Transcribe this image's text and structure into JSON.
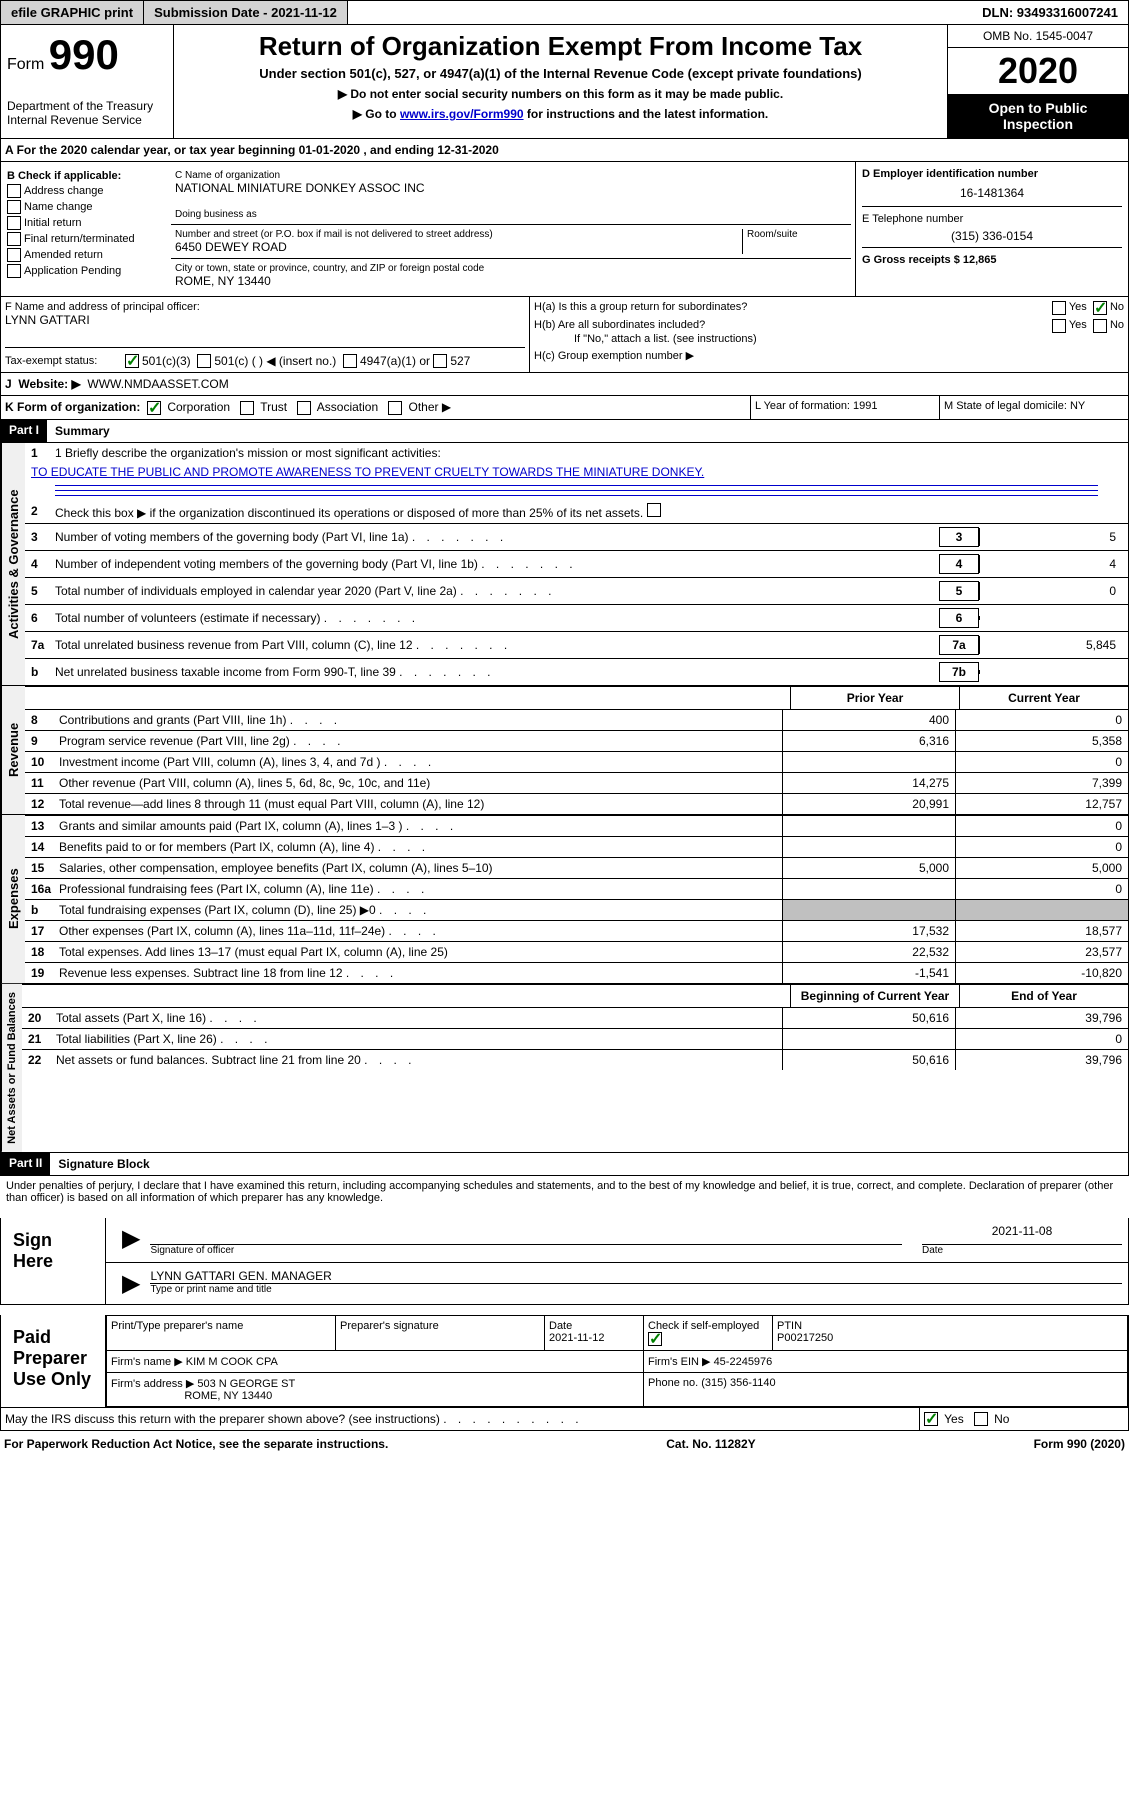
{
  "topbar": {
    "efile": "efile GRAPHIC print",
    "submission_label": "Submission Date - 2021-11-12",
    "dln": "DLN: 93493316007241"
  },
  "header": {
    "form_prefix": "Form",
    "form_num": "990",
    "dept": "Department of the Treasury\nInternal Revenue Service",
    "title": "Return of Organization Exempt From Income Tax",
    "subtitle": "Under section 501(c), 527, or 4947(a)(1) of the Internal Revenue Code (except private foundations)",
    "instr1": "▶ Do not enter social security numbers on this form as it may be made public.",
    "instr2_pre": "▶ Go to ",
    "instr2_link": "www.irs.gov/Form990",
    "instr2_post": " for instructions and the latest information.",
    "omb": "OMB No. 1545-0047",
    "year": "2020",
    "inspection": "Open to Public Inspection"
  },
  "period": "For the 2020 calendar year, or tax year beginning 01-01-2020   , and ending 12-31-2020",
  "section_b": {
    "label": "B Check if applicable:",
    "items": [
      "Address change",
      "Name change",
      "Initial return",
      "Final return/terminated",
      "Amended return",
      "Application Pending"
    ]
  },
  "org": {
    "c_label": "C Name of organization",
    "name": "NATIONAL MINIATURE DONKEY ASSOC INC",
    "dba_label": "Doing business as",
    "addr_label": "Number and street (or P.O. box if mail is not delivered to street address)",
    "room_label": "Room/suite",
    "street": "6450 DEWEY ROAD",
    "city_label": "City or town, state or province, country, and ZIP or foreign postal code",
    "city": "ROME, NY  13440"
  },
  "d_box": {
    "ein_label": "D Employer identification number",
    "ein": "16-1481364",
    "phone_label": "E Telephone number",
    "phone": "(315) 336-0154",
    "gross_label": "G Gross receipts $ 12,865"
  },
  "f_box": {
    "label": "F  Name and address of principal officer:",
    "name": "LYNN GATTARI"
  },
  "h_box": {
    "ha": "H(a)  Is this a group return for subordinates?",
    "hb": "H(b)  Are all subordinates included?",
    "hb_note": "If \"No,\" attach a list. (see instructions)",
    "hc": "H(c)  Group exemption number ▶",
    "yes": "Yes",
    "no": "No"
  },
  "tax_status": {
    "label": "Tax-exempt status:",
    "opt1": "501(c)(3)",
    "opt2": "501(c) (  ) ◀ (insert no.)",
    "opt3": "4947(a)(1) or",
    "opt4": "527"
  },
  "website": {
    "label": "Website: ▶",
    "value": "WWW.NMDAASSET.COM"
  },
  "k_line": {
    "label": "K Form of organization:",
    "corp": "Corporation",
    "trust": "Trust",
    "assoc": "Association",
    "other": "Other ▶"
  },
  "l_line": {
    "label": "L Year of formation: 1991"
  },
  "m_line": {
    "label": "M State of legal domicile: NY"
  },
  "part1": {
    "header": "Part I",
    "title": "Summary",
    "gov_label": "Activities & Governance",
    "rev_label": "Revenue",
    "exp_label": "Expenses",
    "net_label": "Net Assets or Fund Balances",
    "q1_label": "1  Briefly describe the organization's mission or most significant activities:",
    "mission": "TO EDUCATE THE PUBLIC AND PROMOTE AWARENESS TO PREVENT CRUELTY TOWARDS THE MINIATURE DONKEY.",
    "q2": "Check this box ▶         if the organization discontinued its operations or disposed of more than 25% of its net assets.",
    "lines": [
      {
        "n": "3",
        "t": "Number of voting members of the governing body (Part VI, line 1a)",
        "box": "3",
        "v": "5"
      },
      {
        "n": "4",
        "t": "Number of independent voting members of the governing body (Part VI, line 1b)",
        "box": "4",
        "v": "4"
      },
      {
        "n": "5",
        "t": "Total number of individuals employed in calendar year 2020 (Part V, line 2a)",
        "box": "5",
        "v": "0"
      },
      {
        "n": "6",
        "t": "Total number of volunteers (estimate if necessary)",
        "box": "6",
        "v": ""
      },
      {
        "n": "7a",
        "t": "Total unrelated business revenue from Part VIII, column (C), line 12",
        "box": "7a",
        "v": "5,845"
      },
      {
        "n": "b",
        "t": "Net unrelated business taxable income from Form 990-T, line 39",
        "box": "7b",
        "v": ""
      }
    ],
    "prior_header": "Prior Year",
    "current_header": "Current Year",
    "revenue": [
      {
        "n": "8",
        "t": "Contributions and grants (Part VIII, line 1h)",
        "p": "400",
        "c": "0"
      },
      {
        "n": "9",
        "t": "Program service revenue (Part VIII, line 2g)",
        "p": "6,316",
        "c": "5,358"
      },
      {
        "n": "10",
        "t": "Investment income (Part VIII, column (A), lines 3, 4, and 7d )",
        "p": "",
        "c": "0"
      },
      {
        "n": "11",
        "t": "Other revenue (Part VIII, column (A), lines 5, 6d, 8c, 9c, 10c, and 11e)",
        "p": "14,275",
        "c": "7,399"
      },
      {
        "n": "12",
        "t": "Total revenue—add lines 8 through 11 (must equal Part VIII, column (A), line 12)",
        "p": "20,991",
        "c": "12,757"
      }
    ],
    "expenses": [
      {
        "n": "13",
        "t": "Grants and similar amounts paid (Part IX, column (A), lines 1–3 )",
        "p": "",
        "c": "0"
      },
      {
        "n": "14",
        "t": "Benefits paid to or for members (Part IX, column (A), line 4)",
        "p": "",
        "c": "0"
      },
      {
        "n": "15",
        "t": "Salaries, other compensation, employee benefits (Part IX, column (A), lines 5–10)",
        "p": "5,000",
        "c": "5,000"
      },
      {
        "n": "16a",
        "t": "Professional fundraising fees (Part IX, column (A), line 11e)",
        "p": "",
        "c": "0"
      },
      {
        "n": "b",
        "t": "Total fundraising expenses (Part IX, column (D), line 25) ▶0",
        "p": "gray",
        "c": "gray"
      },
      {
        "n": "17",
        "t": "Other expenses (Part IX, column (A), lines 11a–11d, 11f–24e)",
        "p": "17,532",
        "c": "18,577"
      },
      {
        "n": "18",
        "t": "Total expenses. Add lines 13–17 (must equal Part IX, column (A), line 25)",
        "p": "22,532",
        "c": "23,577"
      },
      {
        "n": "19",
        "t": "Revenue less expenses. Subtract line 18 from line 12",
        "p": "-1,541",
        "c": "-10,820"
      }
    ],
    "balance_h1": "Beginning of Current Year",
    "balance_h2": "End of Year",
    "balances": [
      {
        "n": "20",
        "t": "Total assets (Part X, line 16)",
        "p": "50,616",
        "c": "39,796"
      },
      {
        "n": "21",
        "t": "Total liabilities (Part X, line 26)",
        "p": "",
        "c": "0"
      },
      {
        "n": "22",
        "t": "Net assets or fund balances. Subtract line 21 from line 20",
        "p": "50,616",
        "c": "39,796"
      }
    ]
  },
  "part2": {
    "header": "Part II",
    "title": "Signature Block",
    "declare": "Under penalties of perjury, I declare that I have examined this return, including accompanying schedules and statements, and to the best of my knowledge and belief, it is true, correct, and complete. Declaration of preparer (other than officer) is based on all information of which preparer has any knowledge."
  },
  "sign": {
    "label": "Sign Here",
    "sig_label": "Signature of officer",
    "date": "2021-11-08",
    "date_label": "Date",
    "name": "LYNN GATTARI GEN. MANAGER",
    "type_label": "Type or print name and title"
  },
  "preparer": {
    "label": "Paid Preparer Use Only",
    "h1": "Print/Type preparer's name",
    "h2": "Preparer's signature",
    "h3": "Date",
    "date": "2021-11-12",
    "check_label": "Check         if self-employed",
    "ptin_label": "PTIN",
    "ptin": "P00217250",
    "firm_label": "Firm's name    ▶",
    "firm": "KIM M COOK CPA",
    "ein_label": "Firm's EIN ▶",
    "ein": "45-2245976",
    "addr_label": "Firm's address ▶",
    "addr1": "503 N GEORGE ST",
    "addr2": "ROME, NY  13440",
    "phone_label": "Phone no.",
    "phone": "(315) 356-1140"
  },
  "discuss": {
    "q": "May the IRS discuss this return with the preparer shown above? (see instructions)",
    "yes": "Yes",
    "no": "No"
  },
  "footer": {
    "left": "For Paperwork Reduction Act Notice, see the separate instructions.",
    "mid": "Cat. No. 11282Y",
    "right": "Form 990 (2020)"
  }
}
